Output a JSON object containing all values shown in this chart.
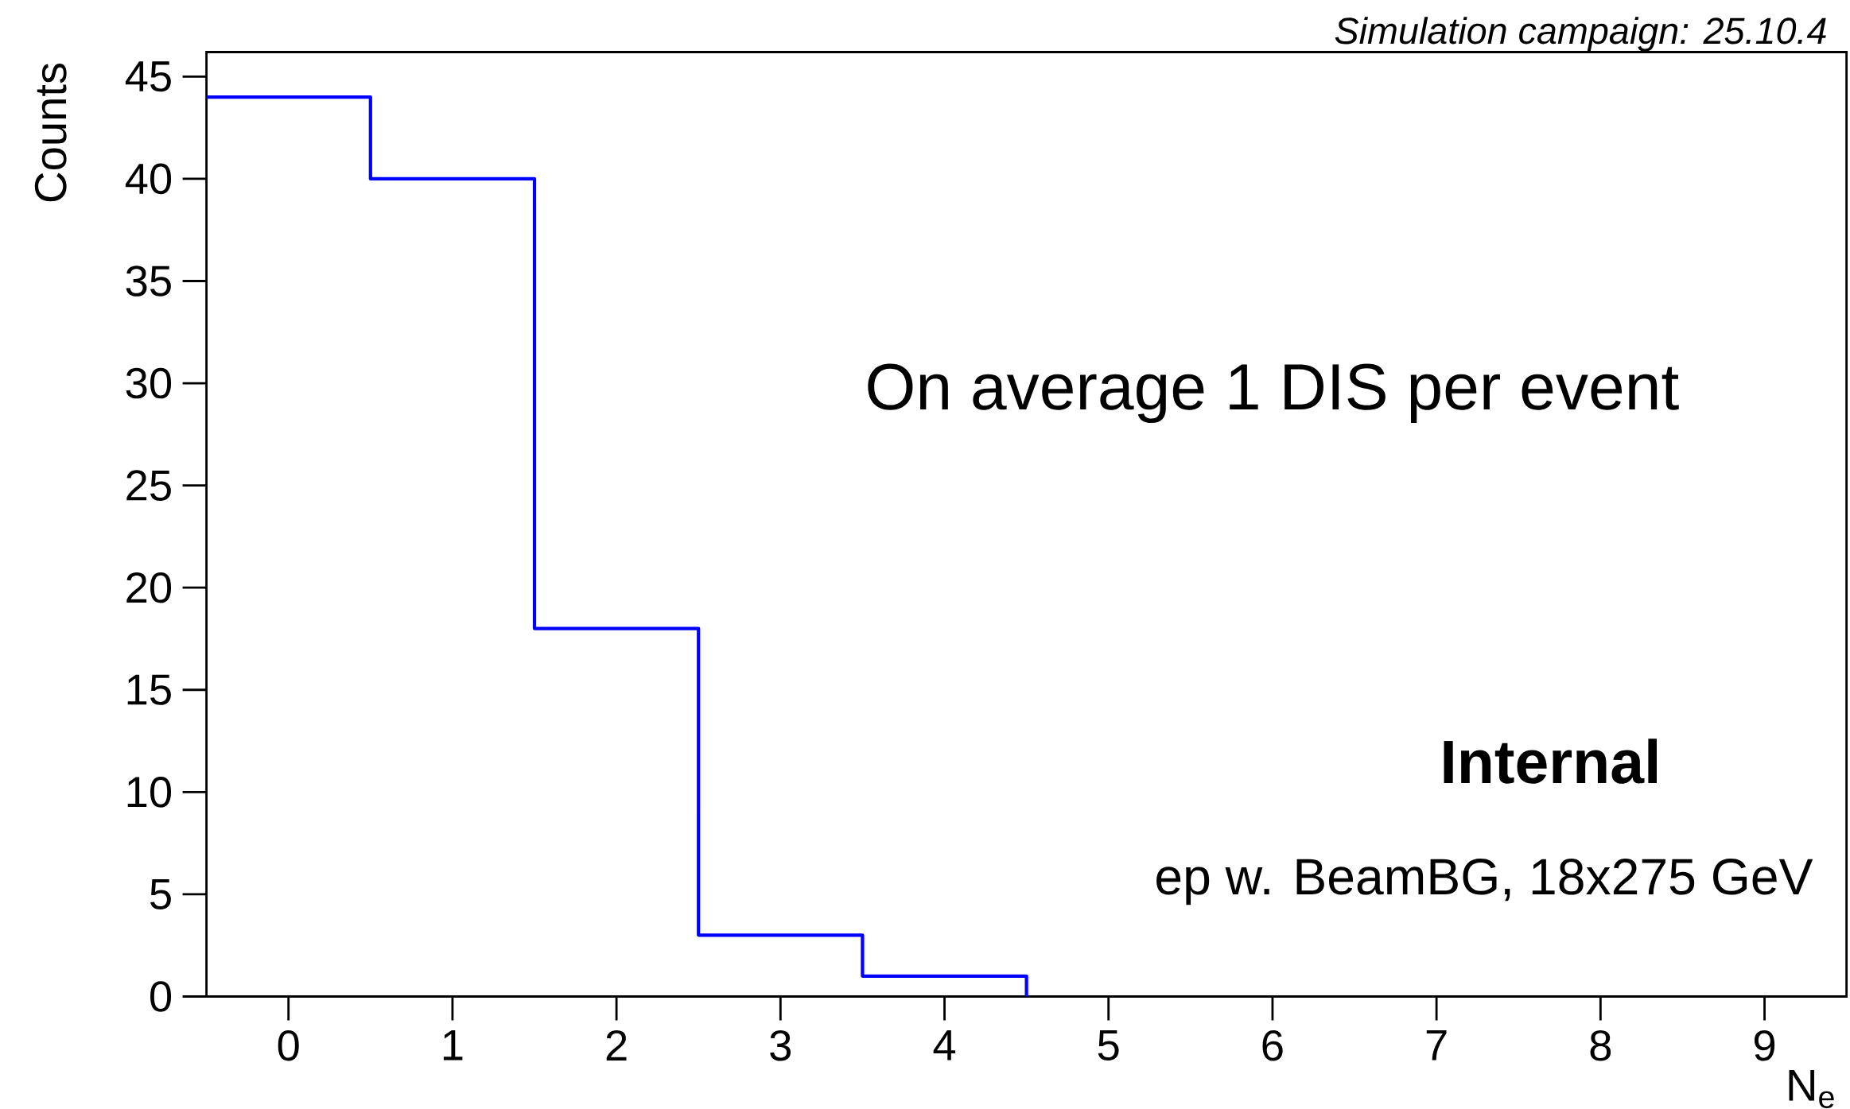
{
  "chart_data": {
    "type": "histogram",
    "xlabel": "N$_{e}$",
    "ylabel": "Counts",
    "bins": [
      -0.5,
      0.5,
      1.5,
      2.5,
      3.5,
      4.5
    ],
    "values": [
      44,
      40,
      18,
      3,
      1
    ],
    "color": "#0000ff",
    "xlim": [
      -0.5,
      9.5
    ],
    "ylim": [
      0,
      46.2
    ],
    "xticks": [
      0,
      1,
      2,
      3,
      4,
      5,
      6,
      7,
      8,
      9
    ],
    "yticks": [
      0,
      5,
      10,
      15,
      20,
      25,
      30,
      35,
      40,
      45
    ],
    "annotations": [
      "Simulation campaign: 25.10.4",
      "On average 1 DIS per event",
      "Internal",
      "ep w. BeamBG, 18x275 GeV"
    ]
  }
}
